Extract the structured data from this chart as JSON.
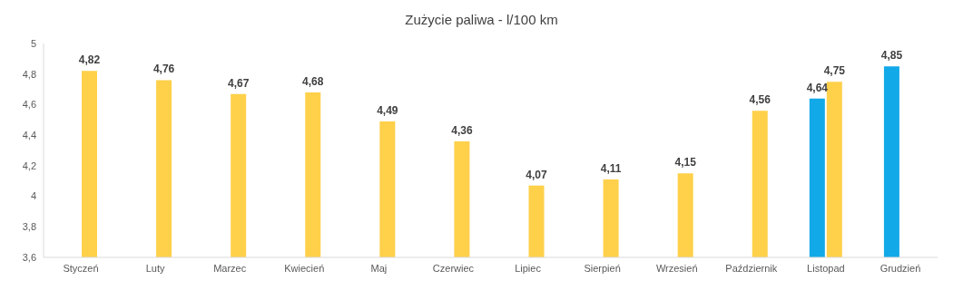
{
  "chart_data": {
    "type": "bar",
    "title": "Zużycie paliwa - l/100 km",
    "categories": [
      "Styczeń",
      "Luty",
      "Marzec",
      "Kwiecień",
      "Maj",
      "Czerwiec",
      "Lipiec",
      "Sierpień",
      "Wrzesień",
      "Październik",
      "Listopad",
      "Grudzień"
    ],
    "series": [
      {
        "color": "#12a9e8",
        "values": [
          null,
          null,
          null,
          null,
          null,
          null,
          null,
          null,
          null,
          null,
          4.64,
          4.85
        ],
        "value_labels": [
          null,
          null,
          null,
          null,
          null,
          null,
          null,
          null,
          null,
          null,
          "4,64",
          "4,85"
        ]
      },
      {
        "color": "#ffd04a",
        "values": [
          4.82,
          4.76,
          4.67,
          4.68,
          4.49,
          4.36,
          4.07,
          4.11,
          4.15,
          4.56,
          4.75,
          null
        ],
        "value_labels": [
          "4,82",
          "4,76",
          "4,67",
          "4,68",
          "4,49",
          "4,36",
          "4,07",
          "4,11",
          "4,15",
          "4,56",
          "4,75",
          null
        ]
      }
    ],
    "ylim": [
      3.6,
      5
    ],
    "yticks": [
      {
        "value": 3.6,
        "label": "3,6"
      },
      {
        "value": 3.8,
        "label": "3,8"
      },
      {
        "value": 4,
        "label": "4"
      },
      {
        "value": 4.2,
        "label": "4,2"
      },
      {
        "value": 4.4,
        "label": "4,4"
      },
      {
        "value": 4.6,
        "label": "4,6"
      },
      {
        "value": 4.8,
        "label": "4,8"
      },
      {
        "value": 5,
        "label": "5"
      }
    ],
    "grid": false,
    "legend": false
  }
}
